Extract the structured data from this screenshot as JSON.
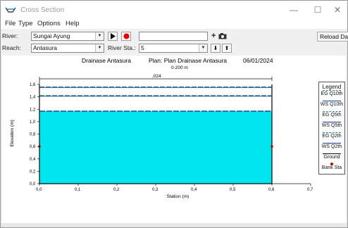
{
  "window": {
    "title": "Cross Section",
    "minimize": "—",
    "maximize": "☐",
    "close": "✕"
  },
  "menu": [
    "File",
    "Type",
    "Options",
    "Help"
  ],
  "toolbar": {
    "river_label": "River:",
    "river_value": "Sungai Ayung",
    "reach_label": "Reach:",
    "reach_value": "Antasura",
    "river_sta_label": "River Sta.:",
    "river_sta_value": "5",
    "play_icon": "play-icon",
    "record_icon": "record-icon",
    "plus_label": "+",
    "up_label": "⬇",
    "down_label": "⬆",
    "reload_label": "Reload Data"
  },
  "plot_header": {
    "left": "Drainase Antasura",
    "plan": "Plan: Plan Drainase Antasura",
    "date": "06/01/2024",
    "profile": "0-200 m"
  },
  "chart_data": {
    "type": "area",
    "xlabel": "Station (m)",
    "ylabel": "Elevation (m)",
    "xlim": [
      0.0,
      0.7
    ],
    "ylim": [
      0.0,
      1.6
    ],
    "xticks": [
      "0,0",
      "0,1",
      "0,2",
      "0,3",
      "0,4",
      "0,5",
      "0,6",
      "0,7"
    ],
    "yticks": [
      "0,0",
      "0,2",
      "0,4",
      "0,6",
      "0,8",
      "1,0",
      "1,2",
      "1,4",
      "1,6"
    ],
    "ground": {
      "x": [
        0.0,
        0.0,
        0.6,
        0.6
      ],
      "y": [
        1.6,
        0.0,
        0.0,
        1.6
      ]
    },
    "water_surface": 1.17,
    "eg_lines": [
      1.56,
      1.42
    ],
    "bank_stations": [
      {
        "x": 0.0,
        "y": 0.6
      },
      {
        "x": 0.6,
        "y": 0.6
      }
    ],
    "roughness_label": ",024",
    "colors": {
      "water": "#00e5ee",
      "ground": "#000000",
      "ws": "#1a3a8c",
      "eg": "#2f7f7f",
      "bank": "#cc0000"
    }
  },
  "legend": {
    "title": "Legend",
    "items": [
      "EG Q10th",
      "WS Q10th",
      "EG Q5th",
      "WS Q5th",
      "EG Q2th",
      "WS Q2th",
      "Ground",
      "Bank Sta"
    ]
  }
}
